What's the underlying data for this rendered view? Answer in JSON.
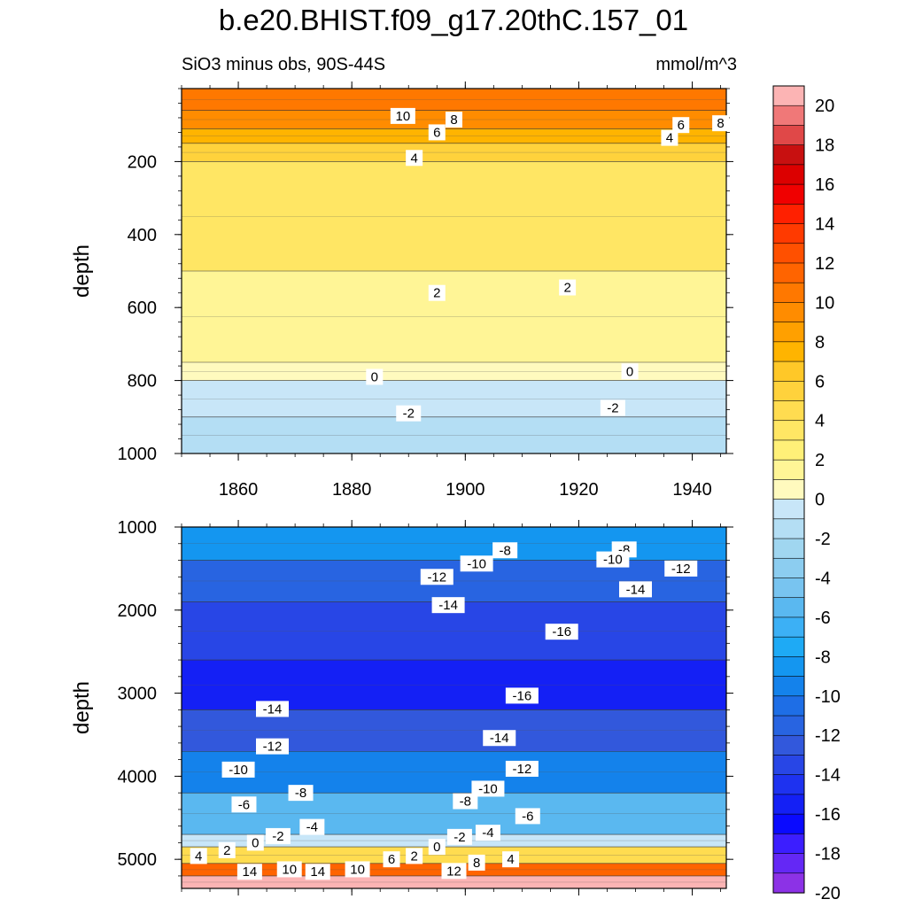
{
  "title": "b.e20.BHIST.f09_g17.20thC.157_01",
  "subtitle_left": "SiO3 minus obs, 90S-44S",
  "subtitle_right": "mmol/m^3",
  "chart_data": [
    {
      "type": "heatmap",
      "panel": "upper",
      "xlabel": "",
      "ylabel": "depth",
      "xlim": [
        1850,
        1946
      ],
      "ylim": [
        1000,
        0
      ],
      "x_ticks": [
        1860,
        1880,
        1900,
        1920,
        1940
      ],
      "y_ticks": [
        200,
        400,
        600,
        800,
        1000
      ],
      "bands": [
        {
          "depth": [
            0,
            60
          ],
          "value": 11
        },
        {
          "depth": [
            60,
            110
          ],
          "value": 9
        },
        {
          "depth": [
            110,
            150
          ],
          "value": 7
        },
        {
          "depth": [
            150,
            200
          ],
          "value": 5
        },
        {
          "depth": [
            200,
            500
          ],
          "value": 3
        },
        {
          "depth": [
            500,
            750
          ],
          "value": 1.5
        },
        {
          "depth": [
            750,
            800
          ],
          "value": 0.5
        },
        {
          "depth": [
            800,
            900
          ],
          "value": -1
        },
        {
          "depth": [
            900,
            1000
          ],
          "value": -2.5
        }
      ],
      "contour_labels": [
        {
          "x": 1889,
          "depth": 75,
          "text": "10"
        },
        {
          "x": 1898,
          "depth": 85,
          "text": "8"
        },
        {
          "x": 1895,
          "depth": 120,
          "text": "6"
        },
        {
          "x": 1938,
          "depth": 100,
          "text": "6"
        },
        {
          "x": 1945,
          "depth": 95,
          "text": "8"
        },
        {
          "x": 1936,
          "depth": 135,
          "text": "4"
        },
        {
          "x": 1891,
          "depth": 190,
          "text": "4"
        },
        {
          "x": 1895,
          "depth": 560,
          "text": "2"
        },
        {
          "x": 1918,
          "depth": 545,
          "text": "2"
        },
        {
          "x": 1884,
          "depth": 790,
          "text": "0"
        },
        {
          "x": 1929,
          "depth": 775,
          "text": "0"
        },
        {
          "x": 1890,
          "depth": 890,
          "text": "-2"
        },
        {
          "x": 1926,
          "depth": 875,
          "text": "-2"
        }
      ]
    },
    {
      "type": "heatmap",
      "panel": "lower",
      "xlabel": "",
      "ylabel": "depth",
      "xlim": [
        1850,
        1946
      ],
      "ylim": [
        5350,
        1000
      ],
      "y_ticks": [
        1000,
        2000,
        3000,
        4000,
        5000
      ],
      "bands": [
        {
          "depth": [
            1000,
            1400
          ],
          "value": -9
        },
        {
          "depth": [
            1400,
            1900
          ],
          "value": -13
        },
        {
          "depth": [
            1900,
            2600
          ],
          "value": -15
        },
        {
          "depth": [
            2600,
            3200
          ],
          "value": -17
        },
        {
          "depth": [
            3200,
            3700
          ],
          "value": -14
        },
        {
          "depth": [
            3700,
            4200
          ],
          "value": -11
        },
        {
          "depth": [
            4200,
            4700
          ],
          "value": -6
        },
        {
          "depth": [
            4700,
            4850
          ],
          "value": -1
        },
        {
          "depth": [
            4850,
            5050
          ],
          "value": 4
        },
        {
          "depth": [
            5050,
            5200
          ],
          "value": 12
        },
        {
          "depth": [
            5200,
            5350
          ],
          "value": 21
        }
      ],
      "contour_labels": [
        {
          "x": 1907,
          "depth": 1280,
          "text": "-8"
        },
        {
          "x": 1928,
          "depth": 1270,
          "text": "-8"
        },
        {
          "x": 1902,
          "depth": 1440,
          "text": "-10"
        },
        {
          "x": 1926,
          "depth": 1390,
          "text": "-10"
        },
        {
          "x": 1938,
          "depth": 1500,
          "text": "-12"
        },
        {
          "x": 1895,
          "depth": 1600,
          "text": "-12"
        },
        {
          "x": 1930,
          "depth": 1750,
          "text": "-14"
        },
        {
          "x": 1897,
          "depth": 1940,
          "text": "-14"
        },
        {
          "x": 1917,
          "depth": 2260,
          "text": "-16"
        },
        {
          "x": 1910,
          "depth": 3030,
          "text": "-16"
        },
        {
          "x": 1866,
          "depth": 3190,
          "text": "-14"
        },
        {
          "x": 1906,
          "depth": 3540,
          "text": "-14"
        },
        {
          "x": 1866,
          "depth": 3640,
          "text": "-12"
        },
        {
          "x": 1910,
          "depth": 3910,
          "text": "-12"
        },
        {
          "x": 1860,
          "depth": 3920,
          "text": "-10"
        },
        {
          "x": 1904,
          "depth": 4150,
          "text": "-10"
        },
        {
          "x": 1871,
          "depth": 4200,
          "text": "-8"
        },
        {
          "x": 1900,
          "depth": 4300,
          "text": "-8"
        },
        {
          "x": 1861,
          "depth": 4340,
          "text": "-6"
        },
        {
          "x": 1911,
          "depth": 4480,
          "text": "-6"
        },
        {
          "x": 1873,
          "depth": 4610,
          "text": "-4"
        },
        {
          "x": 1904,
          "depth": 4680,
          "text": "-4"
        },
        {
          "x": 1867,
          "depth": 4720,
          "text": "-2"
        },
        {
          "x": 1899,
          "depth": 4730,
          "text": "-2"
        },
        {
          "x": 1863,
          "depth": 4800,
          "text": "0"
        },
        {
          "x": 1895,
          "depth": 4850,
          "text": "0"
        },
        {
          "x": 1858,
          "depth": 4890,
          "text": "2"
        },
        {
          "x": 1891,
          "depth": 4960,
          "text": "2"
        },
        {
          "x": 1853,
          "depth": 4960,
          "text": "4"
        },
        {
          "x": 1908,
          "depth": 5000,
          "text": "4"
        },
        {
          "x": 1887,
          "depth": 5000,
          "text": "6"
        },
        {
          "x": 1902,
          "depth": 5040,
          "text": "8"
        },
        {
          "x": 1869,
          "depth": 5120,
          "text": "10"
        },
        {
          "x": 1881,
          "depth": 5120,
          "text": "10"
        },
        {
          "x": 1862,
          "depth": 5150,
          "text": "14"
        },
        {
          "x": 1874,
          "depth": 5150,
          "text": "14"
        },
        {
          "x": 1898,
          "depth": 5140,
          "text": "12"
        }
      ]
    }
  ],
  "colorbar": {
    "labels": [
      "20",
      "18",
      "16",
      "14",
      "12",
      "10",
      "8",
      "6",
      "4",
      "2",
      "0",
      "-2",
      "-4",
      "-6",
      "-8",
      "-10",
      "-12",
      "-14",
      "-16",
      "-18",
      "-20"
    ],
    "colors": [
      "#fcb4b4",
      "#f07878",
      "#e04848",
      "#c81010",
      "#dc0000",
      "#f00000",
      "#ff2000",
      "#ff3a00",
      "#ff5000",
      "#ff6400",
      "#ff7800",
      "#ff8c00",
      "#ffa000",
      "#ffb400",
      "#ffc828",
      "#ffd23c",
      "#ffdc50",
      "#ffe664",
      "#fff078",
      "#fff596",
      "#fffabe",
      "#c8e6f8",
      "#b4def4",
      "#a0d6f0",
      "#8ccdf0",
      "#78c4f0",
      "#5ab8f0",
      "#3cb0f5",
      "#1eaaf5",
      "#1496f0",
      "#1482eb",
      "#1e6ee6",
      "#2864e1",
      "#3258dc",
      "#2846e6",
      "#1e32f0",
      "#1420f5",
      "#0a0aff",
      "#3c1eff",
      "#6428f5",
      "#8c32e6"
    ]
  }
}
